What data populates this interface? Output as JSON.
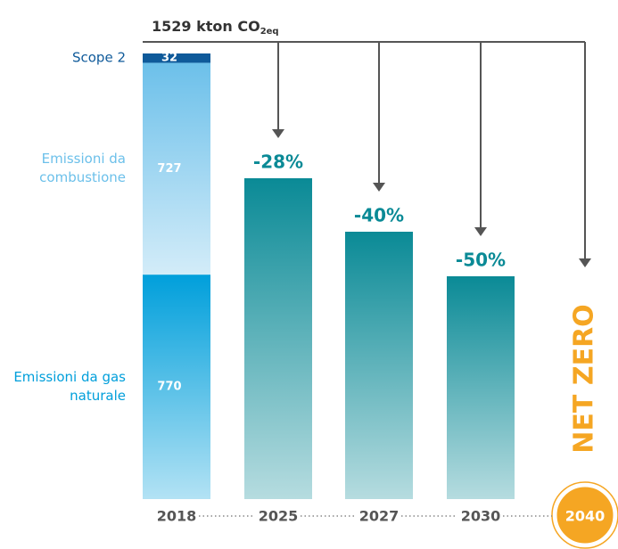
{
  "chart_data": {
    "type": "bar",
    "title": "1529  kton CO",
    "title_subscript": "2eq",
    "categories": [
      "2018",
      "2025",
      "2027",
      "2030",
      "2040"
    ],
    "series": [
      {
        "name": "Emissioni da gas naturale",
        "color": "#009fdb",
        "values": [
          770,
          null,
          null,
          null,
          null
        ]
      },
      {
        "name": "Emissioni da combustione",
        "color": "#6cc0ea",
        "values": [
          727,
          null,
          null,
          null,
          null
        ]
      },
      {
        "name": "Scope 2",
        "color": "#0f5a9a",
        "values": [
          32,
          null,
          null,
          null,
          null
        ]
      }
    ],
    "targets": {
      "color": "#0a8a96",
      "values": [
        null,
        -28,
        -40,
        -50,
        null
      ],
      "value_labels": [
        null,
        "-28%",
        "-40%",
        "-50%",
        null
      ]
    },
    "net_zero": {
      "label": "NET ZERO",
      "color": "#f5a623"
    }
  }
}
